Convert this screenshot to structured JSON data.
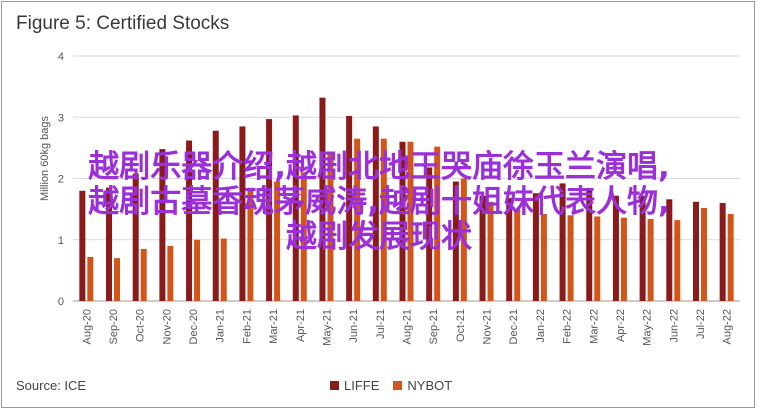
{
  "title": "Figure 5: Certified Stocks",
  "source": "Source: ICE",
  "overlay_lines": [
    "越剧乐器介绍,越剧北地王哭庙徐玉兰演唱,",
    "越剧古墓香魂茅威涛,越剧十姐妹代表人物,",
    "越剧发展现状"
  ],
  "colors": {
    "LIFFE": "#8b1a1a",
    "NYBOT": "#d2561a"
  },
  "chart_data": {
    "type": "bar",
    "title": "Figure 5: Certified Stocks",
    "ylabel": "Million 60kg bags",
    "xlabel": "",
    "ylim": [
      0,
      4
    ],
    "yticks": [
      0,
      1,
      2,
      3,
      4
    ],
    "grid": true,
    "legend": "bottom",
    "categories": [
      "Aug-20",
      "Sep-20",
      "Oct-20",
      "Nov-20",
      "Dec-20",
      "Jan-21",
      "Feb-21",
      "Mar-21",
      "Apr-21",
      "May-21",
      "Jun-21",
      "Jul-21",
      "Aug-21",
      "Sep-21",
      "Oct-21",
      "Nov-21",
      "Dec-21",
      "Jan-22",
      "Feb-22",
      "Mar-22",
      "Apr-22",
      "May-22",
      "Jun-22",
      "Jul-22",
      "Aug-22"
    ],
    "series": [
      {
        "name": "LIFFE",
        "values": [
          1.8,
          1.85,
          2.08,
          2.48,
          2.62,
          2.78,
          2.85,
          2.97,
          3.03,
          3.32,
          3.02,
          2.85,
          2.6,
          2.18,
          1.95,
          1.72,
          1.68,
          1.76,
          1.92,
          1.84,
          1.72,
          1.72,
          1.66,
          1.62,
          1.6
        ]
      },
      {
        "name": "NYBOT",
        "values": [
          0.72,
          0.7,
          0.85,
          0.9,
          1.0,
          1.02,
          1.85,
          1.95,
          2.1,
          2.4,
          2.65,
          2.65,
          2.6,
          2.52,
          2.0,
          1.62,
          1.5,
          1.42,
          1.4,
          1.38,
          1.36,
          1.34,
          1.32,
          1.52,
          1.42
        ]
      }
    ]
  }
}
